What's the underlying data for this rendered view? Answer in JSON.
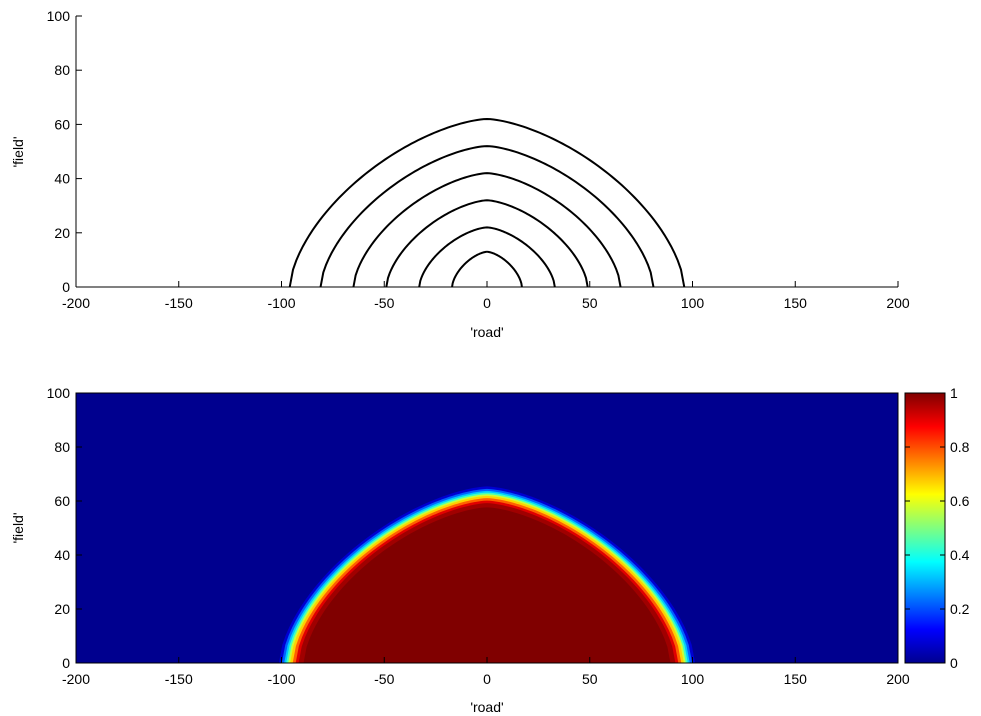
{
  "chart_data": [
    {
      "type": "contour",
      "xlabel": "'road'",
      "ylabel": "'field'",
      "xlim": [
        -200,
        200
      ],
      "ylim": [
        0,
        100
      ],
      "xticks": [
        -200,
        -150,
        -100,
        -50,
        0,
        50,
        100,
        150,
        200
      ],
      "yticks": [
        0,
        20,
        40,
        60,
        80,
        100
      ],
      "line_color": "#000000",
      "curves": [
        {
          "peak": 62,
          "half_width": 96
        },
        {
          "peak": 52,
          "half_width": 81
        },
        {
          "peak": 42,
          "half_width": 65
        },
        {
          "peak": 32,
          "half_width": 49
        },
        {
          "peak": 22,
          "half_width": 33
        },
        {
          "peak": 13,
          "half_width": 17
        }
      ]
    },
    {
      "type": "heatmap",
      "xlabel": "'road'",
      "ylabel": "'field'",
      "xlim": [
        -200,
        200
      ],
      "ylim": [
        0,
        100
      ],
      "xticks": [
        -200,
        -150,
        -100,
        -50,
        0,
        50,
        100,
        150,
        200
      ],
      "yticks": [
        0,
        20,
        40,
        60,
        80,
        100
      ],
      "region": {
        "peak": 62,
        "half_width": 96,
        "inside_value": 1,
        "outside_value": 0
      },
      "colormap": "jet",
      "colorbar": {
        "range": [
          0,
          1
        ],
        "ticks": [
          "0",
          "0.2",
          "0.4",
          "0.6",
          "0.8",
          "1"
        ]
      }
    }
  ]
}
